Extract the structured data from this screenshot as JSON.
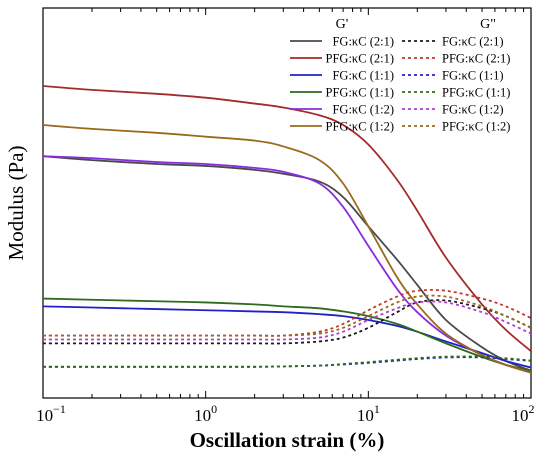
{
  "chart_data": {
    "type": "line",
    "title": "",
    "xlabel": "Oscillation strain (%)",
    "ylabel": "Modulus (Pa)",
    "x_scale": "log",
    "xlim": [
      0.1,
      100
    ],
    "x_ticks": [
      {
        "value": 0.1,
        "base": "10",
        "exp": "−1"
      },
      {
        "value": 1,
        "base": "10",
        "exp": "0"
      },
      {
        "value": 10,
        "base": "10",
        "exp": "1"
      },
      {
        "value": 100,
        "base": "10",
        "exp": "2"
      }
    ],
    "y_tick_labels_shown": false,
    "ylim": [
      0,
      100
    ],
    "grid": false,
    "legend": {
      "placement": "top-right",
      "header_storage": "G'",
      "header_loss": "G\""
    },
    "x": [
      0.1,
      0.2,
      0.5,
      1,
      2,
      3,
      5,
      7,
      10,
      15,
      20,
      30,
      50,
      70,
      100
    ],
    "series": [
      {
        "name": "FG:κC (2:1)",
        "modulus": "G'",
        "color": "#4a4a4a",
        "dash": "solid",
        "values": [
          62,
          61,
          60,
          59.5,
          58.5,
          57.5,
          55.5,
          51.5,
          44,
          35.5,
          29,
          20,
          13,
          9.5,
          7
        ]
      },
      {
        "name": "PFG:κC (2:1)",
        "modulus": "G'",
        "color": "#a52a2a",
        "dash": "solid",
        "values": [
          80,
          79,
          78,
          77,
          75.5,
          74.5,
          72.5,
          70,
          65,
          56,
          48,
          36,
          24,
          17.5,
          12
        ]
      },
      {
        "name": "FG:κC (1:1)",
        "modulus": "G'",
        "color": "#1f22c9",
        "dash": "solid",
        "values": [
          23.5,
          23.2,
          22.8,
          22.5,
          22.2,
          22.0,
          21.5,
          21.0,
          20.0,
          18.5,
          17.0,
          14.5,
          11.5,
          9.5,
          7.8
        ]
      },
      {
        "name": "PFG:κC (1:1)",
        "modulus": "G'",
        "color": "#2e6b1a",
        "dash": "solid",
        "values": [
          25.5,
          25.2,
          24.8,
          24.5,
          24.0,
          23.5,
          23.0,
          22.2,
          21.0,
          19.0,
          17.0,
          14.0,
          10.5,
          8.5,
          7.0
        ]
      },
      {
        "name": "FG:κC (1:2)",
        "modulus": "G'",
        "color": "#8a2be2",
        "dash": "solid",
        "values": [
          62,
          61.5,
          60.5,
          60,
          59,
          58,
          55,
          49,
          39,
          28,
          22,
          16,
          11,
          8.5,
          6.5
        ]
      },
      {
        "name": "PFG:κC (1:2)",
        "modulus": "G'",
        "color": "#9a6a1c",
        "dash": "solid",
        "values": [
          70,
          69,
          68,
          67,
          66,
          64.5,
          61,
          55,
          44,
          31,
          24,
          16.5,
          11,
          8.5,
          6.5
        ]
      },
      {
        "name": "FG:κC (2:1)",
        "modulus": "G\"",
        "color": "#1a1a1a",
        "dash": "dotted",
        "values": [
          14,
          14,
          14,
          14,
          14,
          14,
          14.5,
          15.5,
          18,
          22,
          24.5,
          25,
          23,
          21,
          18
        ]
      },
      {
        "name": "PFG:κC (2:1)",
        "modulus": "G\"",
        "color": "#c0392b",
        "dash": "dotted",
        "values": [
          16,
          16,
          16,
          16,
          16,
          16,
          17,
          19,
          22.5,
          26,
          27.5,
          27.5,
          25.5,
          23.5,
          20.5
        ]
      },
      {
        "name": "FG:κC (1:1)",
        "modulus": "G\"",
        "color": "#1f22c9",
        "dash": "dotted",
        "values": [
          8,
          8,
          8,
          8,
          8,
          8.1,
          8.3,
          8.6,
          9,
          9.6,
          10,
          10.4,
          10.4,
          10,
          9.5
        ]
      },
      {
        "name": "PFG:κC (1:1)",
        "modulus": "G\"",
        "color": "#2e6b1a",
        "dash": "dotted",
        "values": [
          8,
          8,
          8,
          8,
          8,
          8.1,
          8.3,
          8.7,
          9.2,
          9.8,
          10.2,
          10.6,
          10.6,
          10.2,
          9.6
        ]
      },
      {
        "name": "FG:κC (1:2)",
        "modulus": "G\"",
        "color": "#b23ad9",
        "dash": "dotted",
        "values": [
          15,
          15,
          15,
          15,
          15,
          15,
          15.5,
          17,
          20,
          23,
          24.5,
          24.5,
          22,
          19.5,
          16.5
        ]
      },
      {
        "name": "PFG:κC (1:2)",
        "modulus": "G\"",
        "color": "#9a6a1c",
        "dash": "dotted",
        "values": [
          16,
          16,
          16,
          16,
          16,
          16,
          16.5,
          18,
          21,
          24.5,
          26,
          26,
          23.5,
          21,
          18
        ]
      }
    ]
  }
}
